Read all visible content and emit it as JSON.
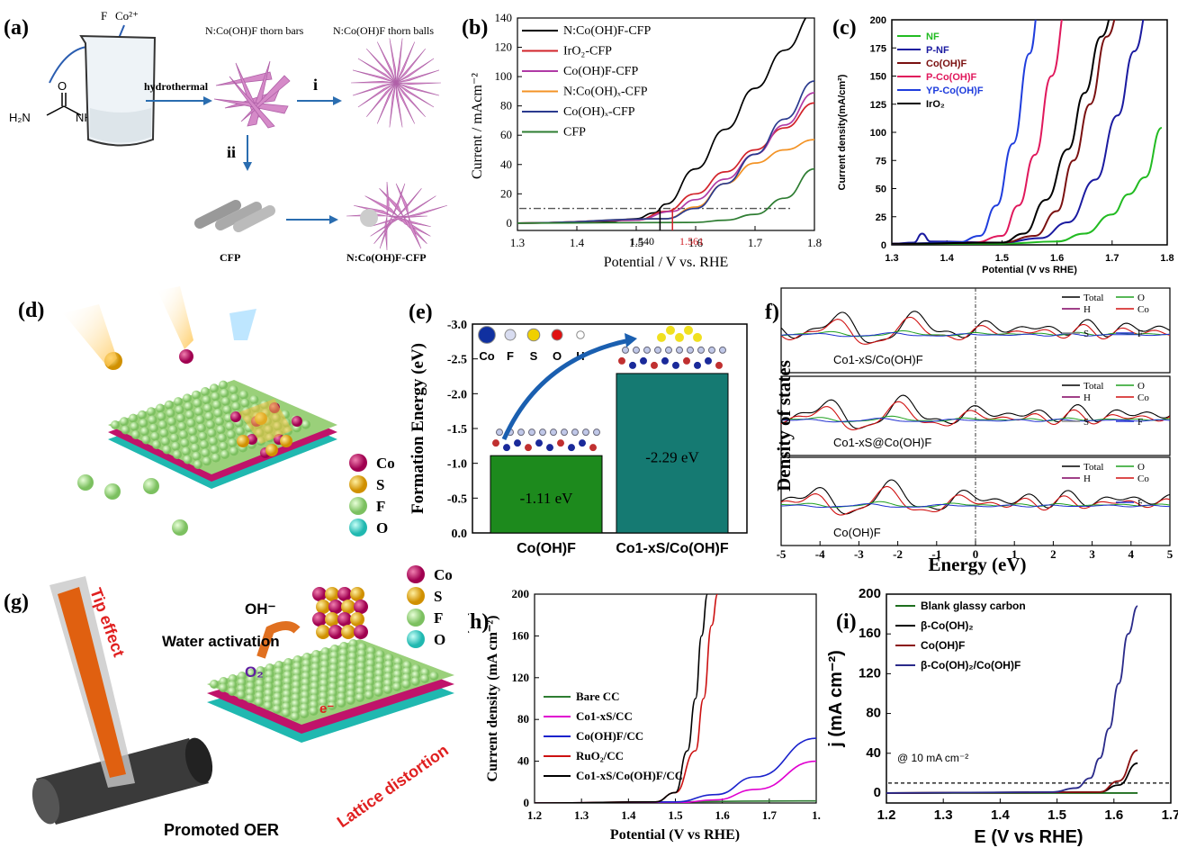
{
  "panels": {
    "a": "(a)",
    "b": "(b)",
    "c": "(c)",
    "d": "(d)",
    "e": "(e)",
    "f": "(f)",
    "g": "(g)",
    "h": "(h)",
    "i": "(i)"
  },
  "a": {
    "ions1": "F",
    "ions2": "Co²⁺",
    "hydro": "hydrothermal",
    "bars": "N:Co(OH)F thorn bars",
    "balls": "N:Co(OH)F thorn balls",
    "i": "i",
    "ii": "ii",
    "cfp": "CFP",
    "cfpc": "N:Co(OH)F-CFP",
    "nh2a": "H₂N",
    "nh2b": "NH₂",
    "o": "O"
  },
  "d": {
    "legend": [
      "Co",
      "S",
      "F",
      "O"
    ]
  },
  "e": {
    "legend": [
      "Co",
      "F",
      "S",
      "O",
      "H"
    ],
    "yticks": [
      "-3.0",
      "-2.5",
      "-2.0",
      "-1.5",
      "-1.0",
      "-0.5",
      "0.0"
    ]
  },
  "f": {
    "ylabel": "Density of states",
    "xlabel": "Energy (eV)",
    "xticks": [
      "-5",
      "-4",
      "-3",
      "-2",
      "-1",
      "0",
      "1",
      "2",
      "3",
      "4",
      "5"
    ],
    "sub": [
      {
        "name": "Co1-xS/Co(OH)F",
        "leg": [
          "Total",
          "O",
          "H",
          "Co",
          "F",
          "S"
        ]
      },
      {
        "name": "Co1-xS@Co(OH)F",
        "leg": [
          "Total",
          "O",
          "H",
          "Co",
          "F",
          "S"
        ]
      },
      {
        "name": "Co(OH)F",
        "leg": [
          "Total",
          "O",
          "H",
          "Co",
          "F"
        ]
      }
    ]
  },
  "g": {
    "tip": "Tip effect",
    "oh": "OH⁻",
    "water": "Water activation",
    "o2": "O₂",
    "e": "e⁻",
    "lattice": "Lattice distortion",
    "promoted": "Promoted OER",
    "legend": [
      "Co",
      "S",
      "F",
      "O"
    ]
  },
  "chart_data": [
    {
      "id": "b",
      "type": "line",
      "xlabel": "Potential / V vs. RHE",
      "ylabel": "Current / mAcm⁻²",
      "xlim": [
        1.3,
        1.8
      ],
      "ylim": [
        -5,
        140
      ],
      "xticks": [
        "1.3",
        "1.4",
        "1.5",
        "1.6",
        "1.7",
        "1.8"
      ],
      "yticks": [
        "0",
        "20",
        "40",
        "60",
        "80",
        "100",
        "120",
        "140"
      ],
      "annotations": [
        "1.540",
        "1.561"
      ],
      "reference_line": 10,
      "series": [
        {
          "name": "N:Co(OH)F-CFP",
          "color": "#000000",
          "x": [
            1.3,
            1.45,
            1.5,
            1.53,
            1.55,
            1.6,
            1.65,
            1.7,
            1.75,
            1.8
          ],
          "y": [
            0,
            1,
            3,
            7,
            13,
            37,
            64,
            92,
            118,
            144
          ]
        },
        {
          "name": "IrO₂-CFP",
          "color": "#d2232a",
          "x": [
            1.3,
            1.5,
            1.55,
            1.6,
            1.65,
            1.7,
            1.75,
            1.8
          ],
          "y": [
            0,
            2,
            8,
            20,
            35,
            50,
            65,
            82
          ]
        },
        {
          "name": "Co(OH)F-CFP",
          "color": "#b03aa5",
          "x": [
            1.3,
            1.5,
            1.56,
            1.6,
            1.65,
            1.7,
            1.75,
            1.8
          ],
          "y": [
            0,
            2,
            8,
            16,
            30,
            47,
            67,
            89
          ]
        },
        {
          "name": "N:Co(OH)ₓ-CFP",
          "color": "#f39325",
          "x": [
            1.3,
            1.55,
            1.6,
            1.65,
            1.7,
            1.75,
            1.8
          ],
          "y": [
            0,
            3,
            11,
            27,
            41,
            50,
            57
          ]
        },
        {
          "name": "Co(OH)ₓ-CFP",
          "color": "#2a3a8e",
          "x": [
            1.3,
            1.55,
            1.6,
            1.65,
            1.7,
            1.75,
            1.8
          ],
          "y": [
            0,
            3,
            10,
            27,
            47,
            71,
            97
          ]
        },
        {
          "name": "CFP",
          "color": "#2e7d32",
          "x": [
            1.3,
            1.6,
            1.65,
            1.7,
            1.75,
            1.8
          ],
          "y": [
            0,
            0.5,
            2,
            6,
            17,
            37
          ]
        }
      ]
    },
    {
      "id": "c",
      "type": "line",
      "xlabel": "Potential (V vs RHE)",
      "ylabel": "Current density(mA/cm²)",
      "xlim": [
        1.3,
        1.8
      ],
      "ylim": [
        0,
        200
      ],
      "xticks": [
        "1.3",
        "1.4",
        "1.5",
        "1.6",
        "1.7",
        "1.8"
      ],
      "yticks": [
        "0",
        "25",
        "50",
        "75",
        "100",
        "125",
        "150",
        "175",
        "200"
      ],
      "series": [
        {
          "name": "NF",
          "color": "#22bb22",
          "x": [
            1.3,
            1.5,
            1.6,
            1.65,
            1.7,
            1.73,
            1.76,
            1.79
          ],
          "y": [
            1,
            1,
            3,
            10,
            27,
            45,
            60,
            104
          ]
        },
        {
          "name": "P-NF",
          "color": "#1a1aa0",
          "x": [
            1.3,
            1.34,
            1.355,
            1.37,
            1.5,
            1.57,
            1.62,
            1.67,
            1.71,
            1.74,
            1.77
          ],
          "y": [
            1,
            2,
            10,
            3,
            2,
            6,
            20,
            58,
            115,
            172,
            220
          ]
        },
        {
          "name": "Co(OH)F",
          "color": "#7a1010",
          "x": [
            1.3,
            1.5,
            1.56,
            1.6,
            1.63,
            1.66,
            1.69,
            1.72
          ],
          "y": [
            1,
            2,
            8,
            30,
            75,
            125,
            185,
            220
          ]
        },
        {
          "name": "P-Co(OH)F",
          "color": "#e0185c",
          "x": [
            1.3,
            1.45,
            1.5,
            1.53,
            1.56,
            1.59,
            1.62
          ],
          "y": [
            1,
            2,
            8,
            35,
            80,
            150,
            220
          ]
        },
        {
          "name": "YP-Co(OH)F",
          "color": "#1f3ddd",
          "x": [
            1.3,
            1.42,
            1.46,
            1.49,
            1.52,
            1.55,
            1.57
          ],
          "y": [
            1,
            2,
            8,
            35,
            90,
            170,
            220
          ]
        },
        {
          "name": "IrO₂",
          "color": "#000000",
          "x": [
            1.3,
            1.5,
            1.54,
            1.58,
            1.62,
            1.65,
            1.68,
            1.71
          ],
          "y": [
            1,
            2,
            10,
            40,
            85,
            135,
            185,
            220
          ]
        }
      ]
    },
    {
      "id": "e",
      "type": "bar",
      "ylabel": "Formation Energy (eV)",
      "categories": [
        "Co(OH)F",
        "Co1-xS/Co(OH)F"
      ],
      "values": [
        -1.11,
        -2.29
      ],
      "value_labels": [
        "-1.11 eV",
        "-2.29 eV"
      ],
      "colors": [
        "#1d8a1d",
        "#157a72"
      ],
      "ylim": [
        0,
        -3.0
      ]
    },
    {
      "id": "h",
      "type": "line",
      "xlabel": "Potential (V vs RHE)",
      "ylabel": "Current density (mA cm⁻²)",
      "xlim": [
        1.2,
        1.9
      ],
      "ylim": [
        0,
        200
      ],
      "xticks": [
        "1.2",
        "1.3",
        "1.4",
        "1.5",
        "1.6",
        "1.7",
        "1."
      ],
      "yticks": [
        "0",
        "40",
        "80",
        "120",
        "160",
        "200"
      ],
      "series": [
        {
          "name": "Bare CC",
          "color": "#2e7d32",
          "x": [
            1.2,
            1.9
          ],
          "y": [
            0,
            2
          ]
        },
        {
          "name": "Co1-xS/CC",
          "color": "#e000d0",
          "x": [
            1.2,
            1.55,
            1.65,
            1.75,
            1.9
          ],
          "y": [
            0,
            0,
            3,
            13,
            40
          ]
        },
        {
          "name": "Co(OH)F/CC",
          "color": "#1a22cc",
          "x": [
            1.2,
            1.55,
            1.65,
            1.75,
            1.9
          ],
          "y": [
            0,
            1,
            8,
            25,
            62
          ]
        },
        {
          "name": "RuO₂/CC",
          "color": "#cc1111",
          "x": [
            1.2,
            1.5,
            1.55,
            1.6,
            1.62,
            1.64,
            1.655
          ],
          "y": [
            0,
            1,
            10,
            50,
            100,
            170,
            200
          ]
        },
        {
          "name": "Co1-xS/Co(OH)F/CC",
          "color": "#000000",
          "x": [
            1.2,
            1.5,
            1.55,
            1.58,
            1.6,
            1.615,
            1.63
          ],
          "y": [
            0,
            1,
            10,
            50,
            100,
            160,
            200
          ]
        }
      ]
    },
    {
      "id": "i",
      "type": "line",
      "xlabel": "E (V vs RHE)",
      "ylabel": "j (mA cm⁻²)",
      "xlim": [
        1.15,
        1.75
      ],
      "ylim": [
        -10,
        200
      ],
      "xticks": [
        "1.2",
        "1.3",
        "1.4",
        "1.5",
        "1.6",
        "1.7"
      ],
      "yticks": [
        "0",
        "40",
        "80",
        "120",
        "160",
        "200"
      ],
      "annotation": "@ 10 mA cm⁻²",
      "reference_line": 10,
      "series": [
        {
          "name": "Blank glassy carbon",
          "color": "#1e6e1e",
          "x": [
            1.15,
            1.68
          ],
          "y": [
            0,
            0
          ]
        },
        {
          "name": "β-Co(OH)₂",
          "color": "#000000",
          "x": [
            1.15,
            1.6,
            1.64,
            1.68
          ],
          "y": [
            0,
            1,
            8,
            30
          ]
        },
        {
          "name": "Co(OH)F",
          "color": "#8a1010",
          "x": [
            1.15,
            1.6,
            1.64,
            1.68
          ],
          "y": [
            0,
            1,
            12,
            43
          ]
        },
        {
          "name": "β-Co(OH)₂/Co(OH)F",
          "color": "#2a2a8a",
          "x": [
            1.15,
            1.5,
            1.55,
            1.58,
            1.6,
            1.62,
            1.64,
            1.66,
            1.68
          ],
          "y": [
            0,
            1,
            5,
            15,
            35,
            65,
            110,
            160,
            188
          ]
        }
      ]
    }
  ]
}
